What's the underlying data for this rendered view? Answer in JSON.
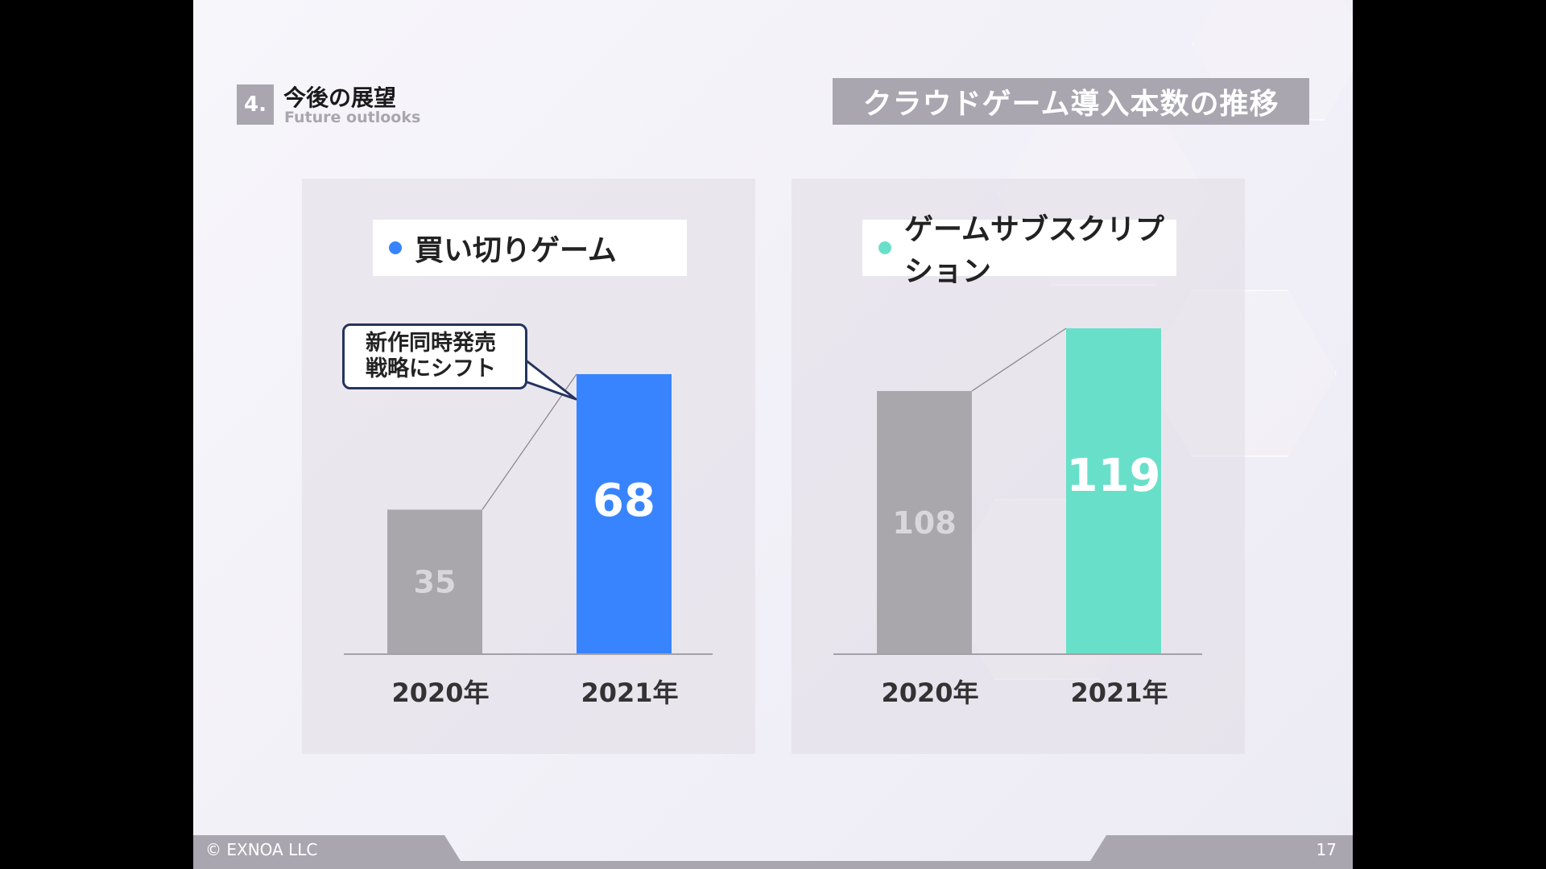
{
  "header": {
    "section_number": "4.",
    "section_title": "今後の展望",
    "section_subtitle": "Future outlooks",
    "page_title": "クラウドゲーム導入本数の推移"
  },
  "colors": {
    "accent_gray": "#a9a6b0",
    "bar_gray": "#aaa7ac",
    "blue": "#3884fe",
    "teal": "#68e0c9",
    "callout_border": "#24345e"
  },
  "chart_data": [
    {
      "type": "bar",
      "title": "買い切りゲーム",
      "title_dot_color": "#3884fe",
      "categories": [
        "2020年",
        "2021年"
      ],
      "values": [
        35,
        68
      ],
      "value_labels": [
        "35",
        "68"
      ],
      "bar_colors": [
        "#aaa7ac",
        "#3884fe"
      ],
      "callout": [
        "新作同時発売",
        "戦略にシフト"
      ],
      "ylim": [
        0,
        68
      ]
    },
    {
      "type": "bar",
      "title": "ゲームサブスクリプション",
      "title_dot_color": "#68e0c9",
      "categories": [
        "2020年",
        "2021年"
      ],
      "values": [
        108,
        119
      ],
      "value_labels": [
        "108",
        "119"
      ],
      "bar_colors": [
        "#aaa7ac",
        "#68e0c9"
      ],
      "ylim": [
        62,
        119
      ]
    }
  ],
  "footer": {
    "copyright": "© EXNOA LLC",
    "page_number": "17"
  }
}
